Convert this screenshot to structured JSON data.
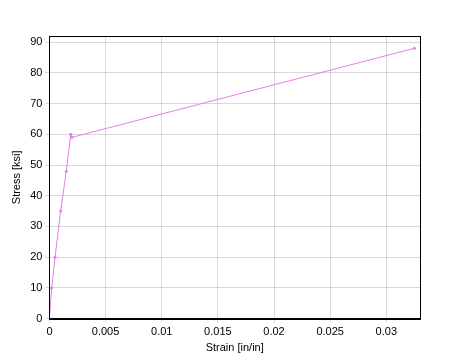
{
  "chart_data": {
    "type": "line",
    "x_label": "Strain [in/in]",
    "y_label": "Stress [ksi]",
    "x": [
      0,
      0.0002,
      0.0005,
      0.001,
      0.0015,
      0.0019,
      0.002,
      0.0325
    ],
    "series": [
      {
        "name": "Stress",
        "color": "#e77ee7",
        "marker": "dot",
        "line_style": "solid",
        "values": [
          0,
          10,
          20,
          35,
          48,
          60,
          59,
          88
        ]
      }
    ],
    "xlim": [
      0,
      0.033
    ],
    "xticks": [
      0,
      0.005,
      0.01,
      0.015,
      0.02,
      0.025,
      0.03
    ],
    "ylim": [
      0,
      92
    ],
    "yticks": [
      0,
      10,
      20,
      30,
      40,
      50,
      60,
      70,
      80,
      90
    ],
    "grid": true
  }
}
